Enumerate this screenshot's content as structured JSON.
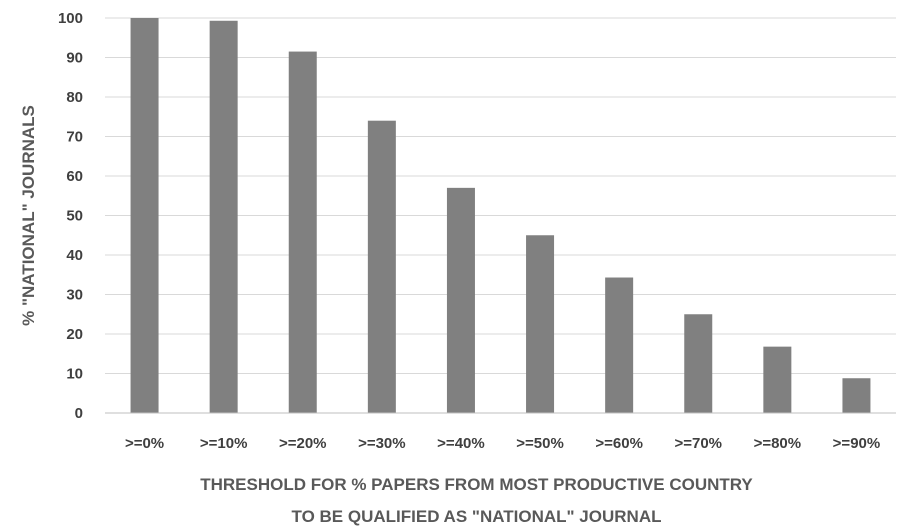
{
  "chart_data": {
    "type": "bar",
    "categories": [
      ">=0%",
      ">=10%",
      ">=20%",
      ">=30%",
      ">=40%",
      ">=50%",
      ">=60%",
      ">=70%",
      ">=80%",
      ">=90%"
    ],
    "values": [
      100,
      99.3,
      91.5,
      74,
      57,
      45,
      34.3,
      25,
      16.8,
      8.8
    ],
    "title": "",
    "xlabel_lines": [
      "THRESHOLD FOR % PAPERS FROM MOST PRODUCTIVE COUNTRY",
      "TO BE QUALIFIED AS \"NATIONAL\" JOURNAL"
    ],
    "ylabel": "% \"NATIONAL\" JOURNALS",
    "ylim": [
      0,
      100
    ],
    "yticks": [
      0,
      10,
      20,
      30,
      40,
      50,
      60,
      70,
      80,
      90,
      100
    ],
    "grid": true,
    "bar_color": "#808080"
  }
}
